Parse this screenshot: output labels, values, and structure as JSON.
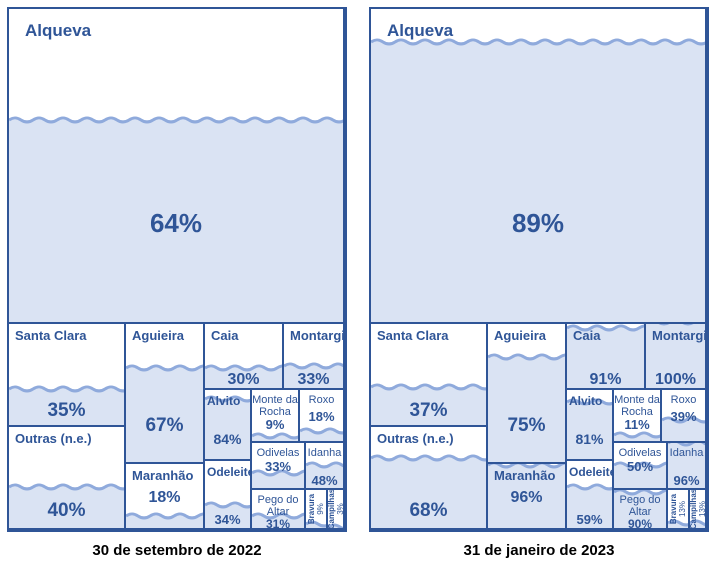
{
  "colors": {
    "border": "#2f5597",
    "fill": "#dae3f3",
    "wave": "#8faadc",
    "text": "#2f5597"
  },
  "panels": [
    {
      "date": "30 de setembro de 2022",
      "reservoirs": [
        {
          "name": "Alqueva",
          "pct": 64
        },
        {
          "name": "Santa Clara",
          "pct": 35
        },
        {
          "name": "Outras (n.e.)",
          "pct": 40
        },
        {
          "name": "Aguieira",
          "pct": 67
        },
        {
          "name": "Maranhão",
          "pct": 18
        },
        {
          "name": "Caia",
          "pct": 30
        },
        {
          "name": "Montargil",
          "pct": 33
        },
        {
          "name": "Alvito",
          "pct": 84
        },
        {
          "name": "Odeleite",
          "pct": 34
        },
        {
          "name": "Monte da Rocha",
          "pct": 9
        },
        {
          "name": "Roxo",
          "pct": 18
        },
        {
          "name": "Odivelas",
          "pct": 33
        },
        {
          "name": "Idanha",
          "pct": 48
        },
        {
          "name": "Pego do Altar",
          "pct": 31
        },
        {
          "name": "Bravura",
          "pct": 9
        },
        {
          "name": "Campilhas",
          "pct": 3
        }
      ]
    },
    {
      "date": "31 de janeiro de 2023",
      "reservoirs": [
        {
          "name": "Alqueva",
          "pct": 89
        },
        {
          "name": "Santa Clara",
          "pct": 37
        },
        {
          "name": "Outras (n.e.)",
          "pct": 68
        },
        {
          "name": "Aguieira",
          "pct": 75
        },
        {
          "name": "Maranhão",
          "pct": 96
        },
        {
          "name": "Caia",
          "pct": 91
        },
        {
          "name": "Montargil",
          "pct": 100
        },
        {
          "name": "Alvito",
          "pct": 81
        },
        {
          "name": "Odeleite",
          "pct": 59
        },
        {
          "name": "Monte da Rocha",
          "pct": 11
        },
        {
          "name": "Roxo",
          "pct": 39
        },
        {
          "name": "Odivelas",
          "pct": 50
        },
        {
          "name": "Idanha",
          "pct": 96
        },
        {
          "name": "Pego do Altar",
          "pct": 90
        },
        {
          "name": "Bravura",
          "pct": 13
        },
        {
          "name": "Campilhas",
          "pct": 13
        }
      ]
    }
  ]
}
